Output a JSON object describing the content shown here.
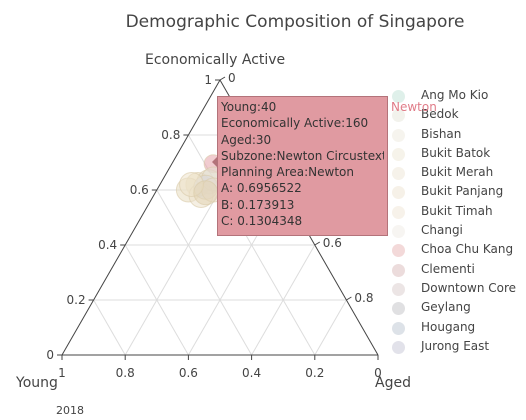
{
  "chart_data": {
    "type": "scatter",
    "subtype": "ternary",
    "title": "Demographic Composition of Singapore",
    "axes": {
      "a": {
        "title": "Economically Active",
        "ticks": [
          "1",
          "0.8",
          "0.6",
          "0.4",
          "0.2",
          "0"
        ]
      },
      "b": {
        "title": "Young",
        "ticks": [
          "1",
          "0.8",
          "0.6",
          "0.4",
          "0.2",
          "0"
        ]
      },
      "c": {
        "title": "Aged",
        "ticks": [
          "0",
          "0.2",
          "0.4",
          "0.6",
          "0.8"
        ]
      }
    },
    "frame_label": "2018",
    "legend": {
      "placement": "right",
      "items": [
        {
          "label": "Ang Mo Kio",
          "color": "#dff0ea"
        },
        {
          "label": "Bedok",
          "color": "#f2f2ec"
        },
        {
          "label": "Bishan",
          "color": "#f6f4ee"
        },
        {
          "label": "Bukit Batok",
          "color": "#f6f3ea"
        },
        {
          "label": "Bukit Merah",
          "color": "#f6f2ea"
        },
        {
          "label": "Bukit Panjang",
          "color": "#f6f1e8"
        },
        {
          "label": "Bukit Timah",
          "color": "#f7f2ea"
        },
        {
          "label": "Changi",
          "color": "#f7f5f2"
        },
        {
          "label": "Choa Chu Kang",
          "color": "#f3d9d9"
        },
        {
          "label": "Clementi",
          "color": "#ecdcdc"
        },
        {
          "label": "Downtown Core",
          "color": "#ece5e5"
        },
        {
          "label": "Geylang",
          "color": "#e0e0e2"
        },
        {
          "label": "Hougang",
          "color": "#dde2e8"
        },
        {
          "label": "Jurong East",
          "color": "#e2e2ea"
        }
      ]
    },
    "points": [
      {
        "a": 0.6956522,
        "b": 0.173913,
        "c": 0.1304348,
        "color": "#e6a3aa"
      },
      {
        "a": 0.62,
        "b": 0.26,
        "c": 0.12,
        "color": "#e8d8b8"
      },
      {
        "a": 0.6,
        "b": 0.3,
        "c": 0.1,
        "color": "#e8dcc0"
      },
      {
        "a": 0.63,
        "b": 0.22,
        "c": 0.15,
        "color": "#e0d8c8"
      },
      {
        "a": 0.58,
        "b": 0.27,
        "c": 0.15,
        "color": "#ece2cc"
      },
      {
        "a": 0.64,
        "b": 0.2,
        "c": 0.16,
        "color": "#e4dcd0"
      },
      {
        "a": 0.61,
        "b": 0.24,
        "c": 0.15,
        "color": "#d8d8dc"
      },
      {
        "a": 0.6,
        "b": 0.22,
        "c": 0.18,
        "color": "#eadccc"
      },
      {
        "a": 0.62,
        "b": 0.28,
        "c": 0.1,
        "color": "#efe4cc"
      },
      {
        "a": 0.59,
        "b": 0.25,
        "c": 0.16,
        "color": "#e2d4b4"
      }
    ],
    "tooltip": {
      "lines": [
        "Young:40",
        "Economically Active:160",
        "Aged:30",
        "Subzone:Newton Circustext",
        "Planning Area:Newton",
        "A: 0.6956522",
        "B: 0.173913",
        "C: 0.1304348"
      ],
      "trace_name": "Newton"
    }
  }
}
